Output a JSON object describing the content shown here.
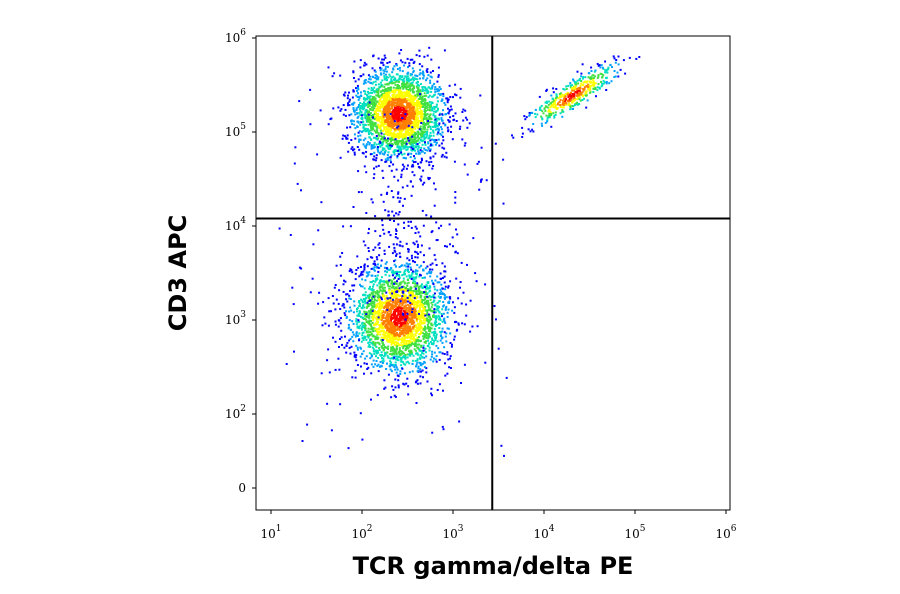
{
  "chart_data": {
    "type": "scatter",
    "title": "",
    "xlabel": "TCR gamma/delta PE",
    "ylabel": "CD3 APC",
    "x_scale": "biexponential",
    "y_scale": "biexponential",
    "x_ticks": [
      {
        "base": "10",
        "exp": "1",
        "value": 10
      },
      {
        "base": "10",
        "exp": "2",
        "value": 100
      },
      {
        "base": "10",
        "exp": "3",
        "value": 1000
      },
      {
        "base": "10",
        "exp": "4",
        "value": 10000
      },
      {
        "base": "10",
        "exp": "5",
        "value": 100000
      },
      {
        "base": "10",
        "exp": "6",
        "value": 1000000
      }
    ],
    "y_ticks": [
      {
        "base": "0",
        "exp": "",
        "value": 0
      },
      {
        "base": "10",
        "exp": "2",
        "value": 100
      },
      {
        "base": "10",
        "exp": "3",
        "value": 1000
      },
      {
        "base": "10",
        "exp": "4",
        "value": 10000
      },
      {
        "base": "10",
        "exp": "5",
        "value": 100000
      },
      {
        "base": "10",
        "exp": "6",
        "value": 1000000
      }
    ],
    "quadrant_gates": {
      "x": 2700,
      "y": 12000
    },
    "populations": [
      {
        "x_center": 250,
        "y_center": 160000,
        "relative_size": "large"
      },
      {
        "x_center": 250,
        "y_center": 1100,
        "relative_size": "large"
      },
      {
        "x_center": 20000,
        "y_center": 250000,
        "relative_size": "small"
      }
    ],
    "color_scale": [
      "#0000ff",
      "#00a0ff",
      "#00e0c0",
      "#40e040",
      "#ffff00",
      "#ff8000",
      "#ff0000"
    ],
    "grid": false
  }
}
